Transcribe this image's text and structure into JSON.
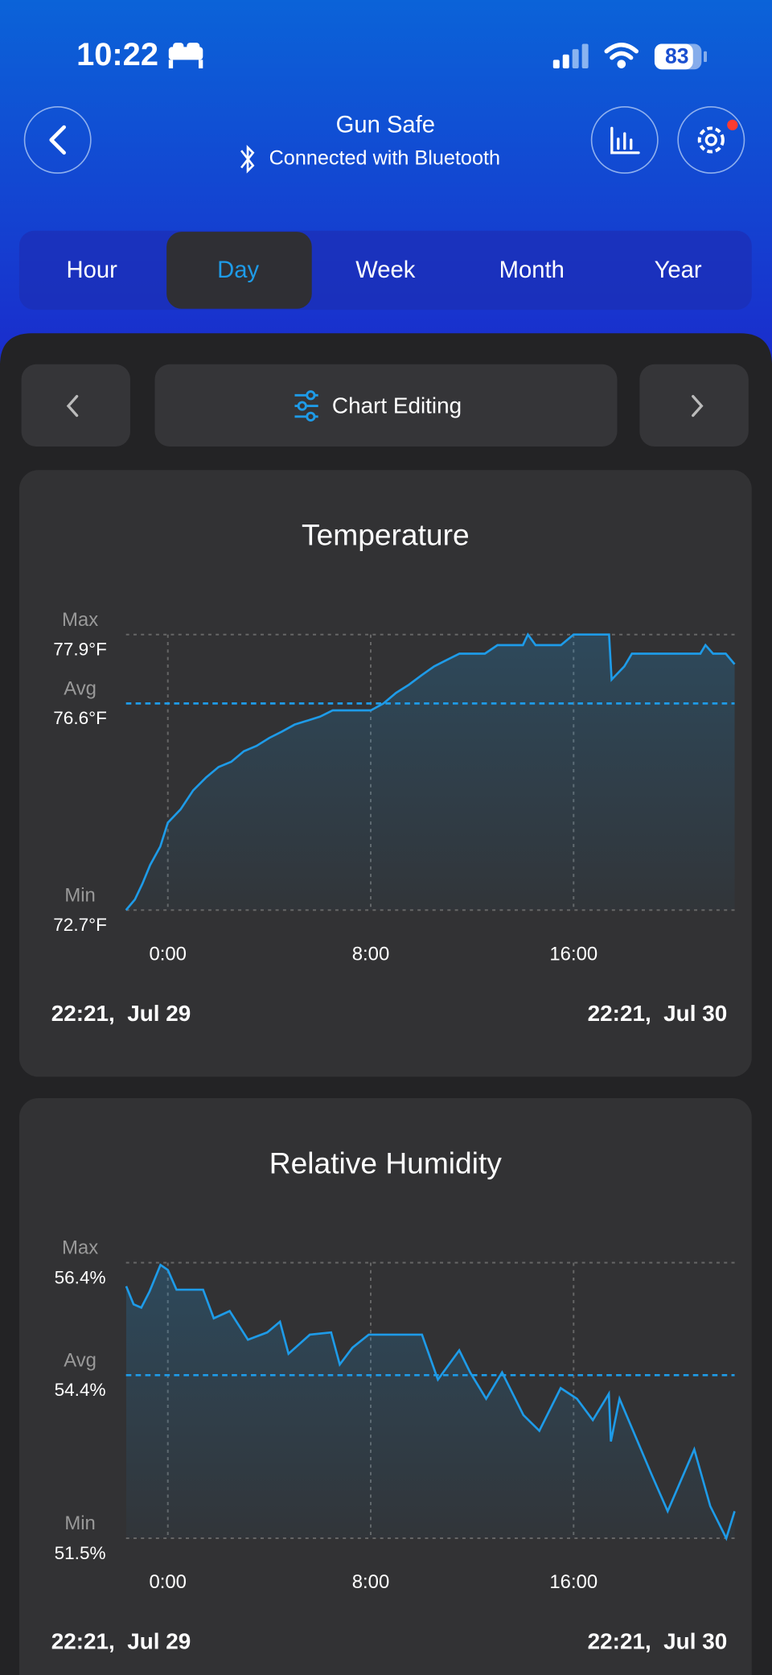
{
  "status_bar": {
    "time": "10:22",
    "battery": "83"
  },
  "header": {
    "title": "Gun Safe",
    "subtitle": "Connected with Bluetooth"
  },
  "tabs": [
    "Hour",
    "Day",
    "Week",
    "Month",
    "Year"
  ],
  "selected_tab_index": 1,
  "toolbar": {
    "label": "Chart Editing"
  },
  "charts": [
    {
      "type": "line",
      "title": "Temperature",
      "color": "#1e9be8",
      "x": [
        -1.65,
        -1.3,
        -1.0,
        -0.7,
        -0.3,
        0,
        0.5,
        1,
        1.5,
        2,
        2.5,
        3,
        3.5,
        4,
        4.5,
        5,
        6,
        6.5,
        8,
        8.5,
        9,
        9.5,
        10,
        10.5,
        11,
        11.5,
        12,
        12.5,
        13,
        14,
        14.2,
        14.5,
        15,
        15.5,
        16,
        17,
        17.4,
        17.5,
        18,
        18.3,
        19,
        20,
        21,
        21.2,
        21.5,
        22,
        22.35
      ],
      "values": [
        72.7,
        72.9,
        73.2,
        73.55,
        73.9,
        74.35,
        74.6,
        74.96,
        75.2,
        75.4,
        75.5,
        75.7,
        75.8,
        75.95,
        76.07,
        76.2,
        76.35,
        76.47,
        76.47,
        76.6,
        76.8,
        76.95,
        77.13,
        77.3,
        77.42,
        77.54,
        77.54,
        77.54,
        77.7,
        77.7,
        77.9,
        77.7,
        77.7,
        77.7,
        77.9,
        77.9,
        77.9,
        77.05,
        77.3,
        77.54,
        77.54,
        77.54,
        77.54,
        77.7,
        77.54,
        77.54,
        77.34
      ],
      "xlim": [
        -1.65,
        22.35
      ],
      "xticks": [
        {
          "value": 0,
          "label": "0:00"
        },
        {
          "value": 8,
          "label": "8:00"
        },
        {
          "value": 16,
          "label": "16:00"
        }
      ],
      "ylim": [
        72.7,
        77.9
      ],
      "yticks": [
        {
          "value": 72.7,
          "label": "72.7°F"
        },
        {
          "value": 76.6,
          "label": "76.6°F"
        },
        {
          "value": 77.9,
          "label": "77.9°F"
        }
      ],
      "ytick_names": [
        "Min",
        "Avg",
        "Max"
      ],
      "highlight_tick": 1,
      "start_label": "22:21,  Jul 29",
      "end_label": "22:21,  Jul 30"
    },
    {
      "type": "line",
      "title": "Relative Humidity",
      "color": "#1e9be8",
      "x": [
        -1.64,
        -1.35,
        -1.05,
        -0.72,
        -0.29,
        0,
        0.34,
        1.39,
        1.81,
        2.44,
        3.16,
        3.92,
        4.42,
        4.76,
        5.6,
        6.44,
        6.78,
        7.28,
        7.92,
        10.02,
        10.65,
        11.49,
        11.92,
        12.55,
        13.18,
        14.02,
        14.65,
        15.49,
        16.13,
        16.76,
        17.39,
        17.47,
        17.81,
        19.07,
        19.71,
        20.76,
        21.39,
        22.02,
        22.35
      ],
      "values": [
        55.98,
        55.66,
        55.6,
        55.89,
        56.36,
        56.27,
        55.92,
        55.92,
        55.41,
        55.54,
        55.03,
        55.16,
        55.35,
        54.78,
        55.12,
        55.16,
        54.59,
        54.89,
        55.12,
        55.12,
        54.32,
        54.84,
        54.45,
        53.98,
        54.45,
        53.69,
        53.41,
        54.17,
        53.98,
        53.6,
        54.07,
        53.22,
        53.98,
        52.64,
        51.98,
        53.08,
        52.07,
        51.5,
        51.98
      ],
      "xlim": [
        -1.65,
        22.35
      ],
      "xticks": [
        {
          "value": 0,
          "label": "0:00"
        },
        {
          "value": 8,
          "label": "8:00"
        },
        {
          "value": 16,
          "label": "16:00"
        }
      ],
      "ylim": [
        51.5,
        56.4
      ],
      "yticks": [
        {
          "value": 51.5,
          "label": "51.5%"
        },
        {
          "value": 54.4,
          "label": "54.4%"
        },
        {
          "value": 56.4,
          "label": "56.4%"
        }
      ],
      "ytick_names": [
        "Min",
        "Avg",
        "Max"
      ],
      "highlight_tick": 1,
      "start_label": "22:21,  Jul 29",
      "end_label": "22:21,  Jul 30"
    }
  ]
}
